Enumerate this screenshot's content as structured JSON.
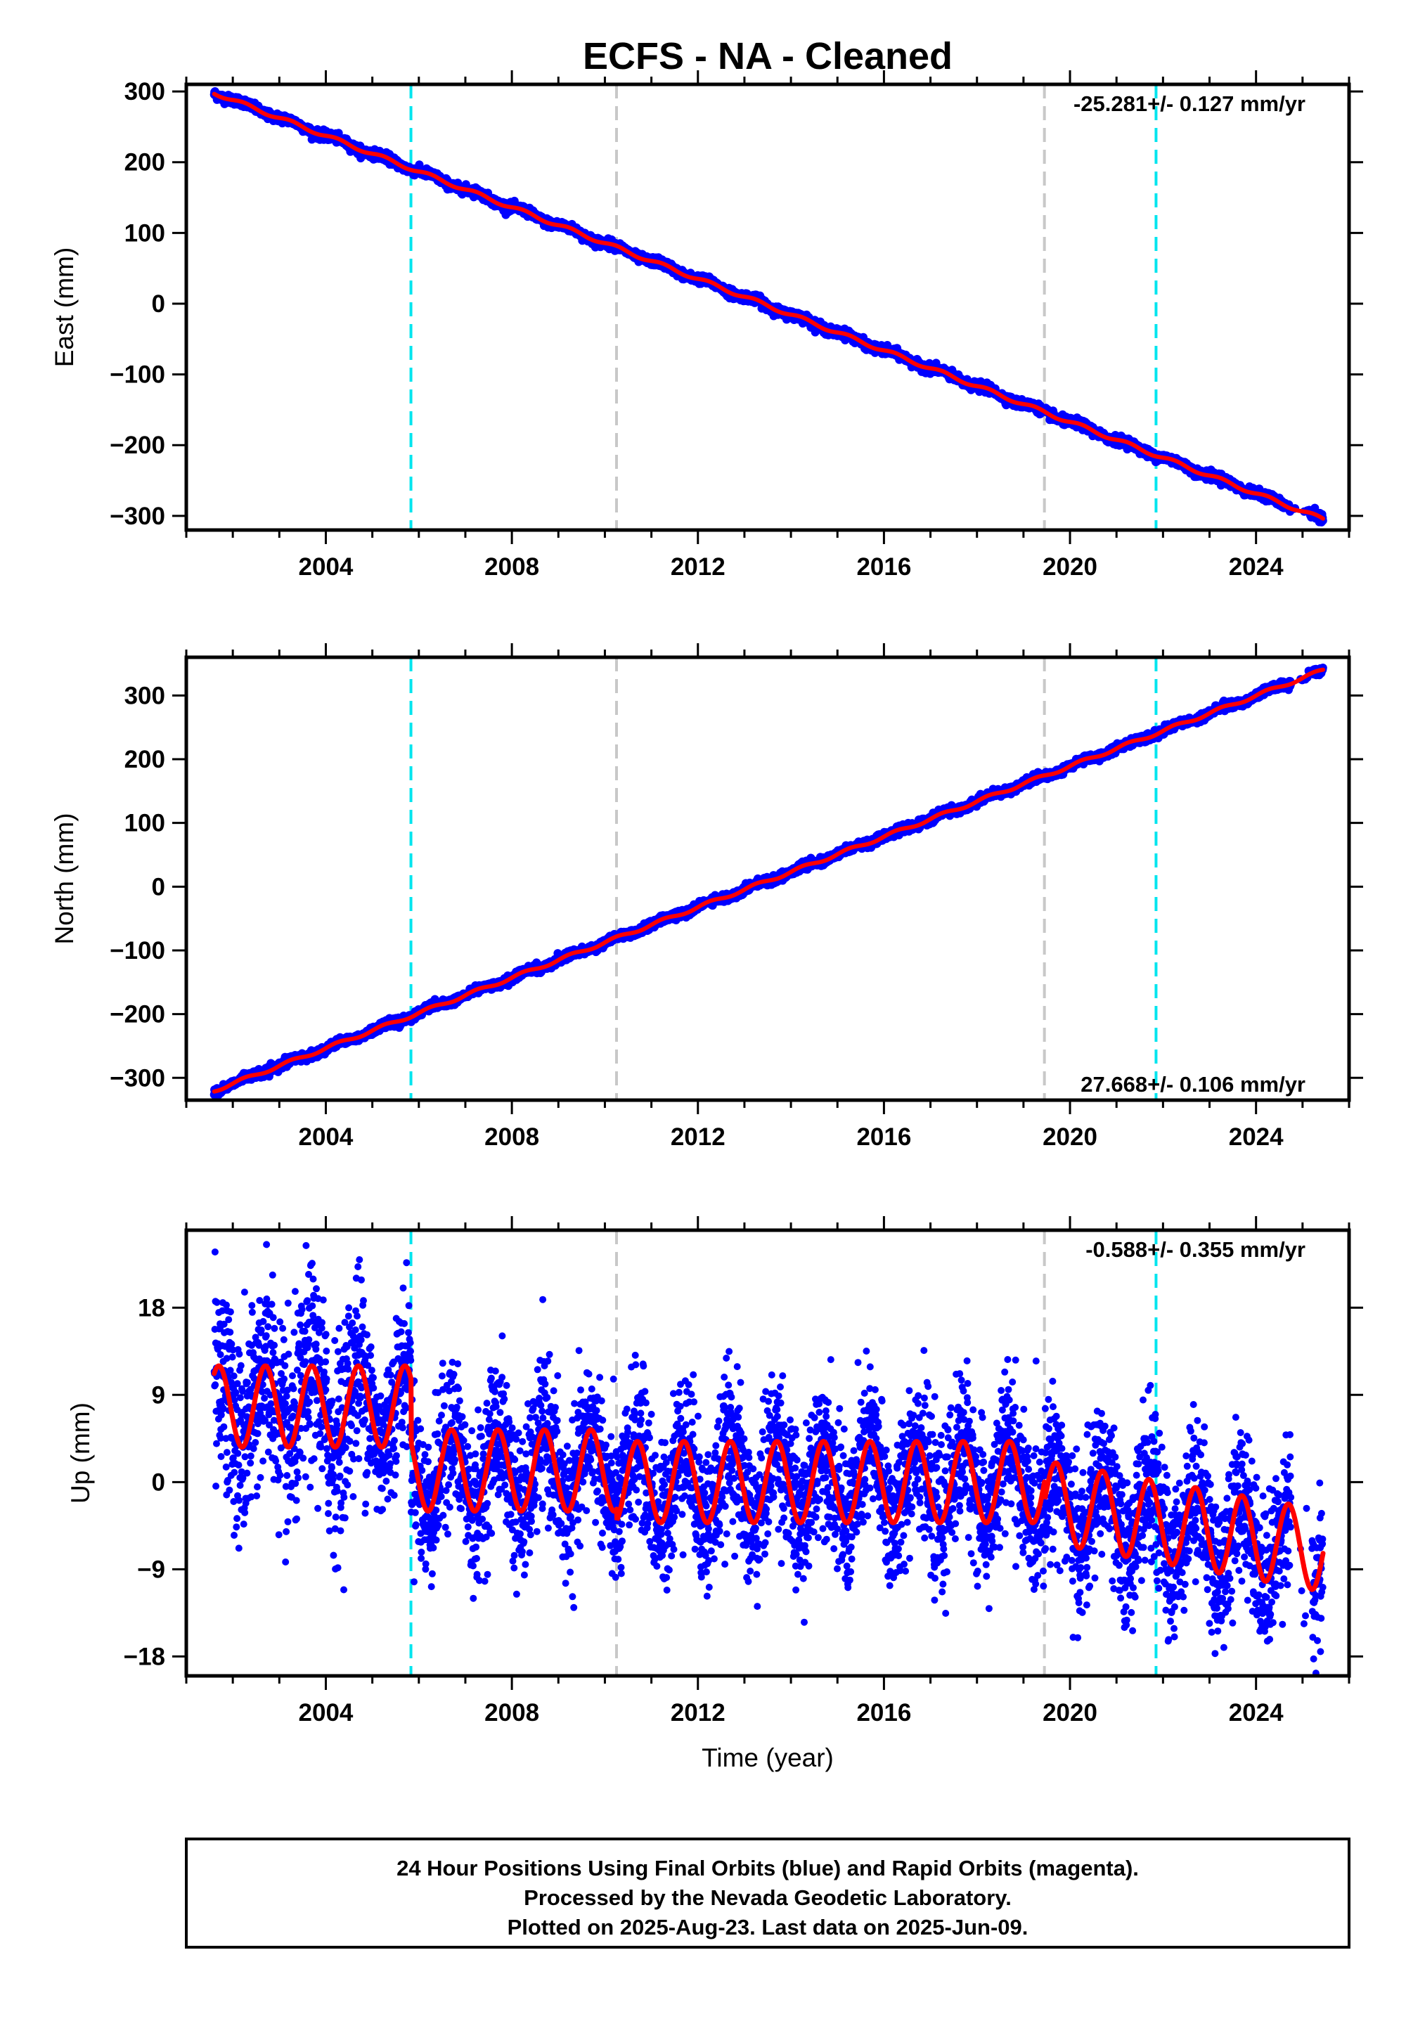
{
  "title": "ECFS  - NA - Cleaned",
  "xlabel": "Time (year)",
  "footer": [
    "24 Hour Positions Using Final Orbits (blue) and Rapid Orbits (magenta).",
    "Processed by the Nevada Geodetic Laboratory.",
    "Plotted on 2025-Aug-23. Last data on 2025-Jun-09."
  ],
  "colors": {
    "points": "#0000ff",
    "fit": "#ff0000",
    "equipment_change": "#00e5ee",
    "other_event": "#c8c8c8"
  },
  "chart_data": [
    {
      "type": "scatter",
      "panel": "east",
      "ylabel": "East (mm)",
      "rate_text": "-25.281+/- 0.127 mm/yr",
      "rate_position": "top-right",
      "xlim": [
        2001.0,
        2026.0
      ],
      "ylim": [
        -320,
        310
      ],
      "xticks": [
        2004,
        2008,
        2012,
        2016,
        2020,
        2024
      ],
      "yticks": [
        300,
        200,
        100,
        0,
        -100,
        -200,
        -300
      ],
      "grid": false,
      "trend": {
        "t0": 2001.6,
        "v0": 298,
        "rate": -25.281
      },
      "seasonal_amplitude": 2.5,
      "noise": 3,
      "event_lines": [
        {
          "x": 2005.83,
          "kind": "equipment_change"
        },
        {
          "x": 2010.25,
          "kind": "other_event"
        },
        {
          "x": 2019.45,
          "kind": "other_event"
        },
        {
          "x": 2021.85,
          "kind": "equipment_change"
        }
      ]
    },
    {
      "type": "scatter",
      "panel": "north",
      "ylabel": "North (mm)",
      "rate_text": "27.668+/- 0.106 mm/yr",
      "rate_position": "bottom-right",
      "xlim": [
        2001.0,
        2026.0
      ],
      "ylim": [
        -335,
        360
      ],
      "xticks": [
        2004,
        2008,
        2012,
        2016,
        2020,
        2024
      ],
      "yticks": [
        300,
        200,
        100,
        0,
        -100,
        -200,
        -300
      ],
      "grid": false,
      "trend": {
        "t0": 2001.6,
        "v0": -320,
        "rate": 27.668
      },
      "seasonal_amplitude": 2.5,
      "noise": 3,
      "event_lines": [
        {
          "x": 2005.83,
          "kind": "equipment_change"
        },
        {
          "x": 2010.25,
          "kind": "other_event"
        },
        {
          "x": 2019.45,
          "kind": "other_event"
        },
        {
          "x": 2021.85,
          "kind": "equipment_change"
        }
      ]
    },
    {
      "type": "scatter",
      "panel": "up",
      "ylabel": "Up (mm)",
      "rate_text": "-0.588+/- 0.355 mm/yr",
      "rate_position": "top-right",
      "xlim": [
        2001.0,
        2026.0
      ],
      "ylim": [
        -20,
        26
      ],
      "xticks": [
        2004,
        2008,
        2012,
        2016,
        2020,
        2024
      ],
      "yticks": [
        18,
        9,
        0,
        -9,
        -18
      ],
      "grid": false,
      "fit_segments": [
        {
          "from": 2001.6,
          "to": 2005.83,
          "offset": 7.8,
          "rate": 0
        },
        {
          "from": 2005.83,
          "to": 2010.25,
          "offset": 1.2,
          "rate": 0
        },
        {
          "from": 2010.25,
          "to": 2019.45,
          "offset": 0.0,
          "rate": 0
        },
        {
          "from": 2019.45,
          "to": 2025.44,
          "offset": -2.0,
          "rate": -0.85
        }
      ],
      "fit_amplitude": 4.2,
      "noise": 3.8,
      "event_lines": [
        {
          "x": 2005.83,
          "kind": "equipment_change"
        },
        {
          "x": 2010.25,
          "kind": "other_event"
        },
        {
          "x": 2019.45,
          "kind": "other_event"
        },
        {
          "x": 2021.85,
          "kind": "equipment_change"
        }
      ]
    }
  ]
}
